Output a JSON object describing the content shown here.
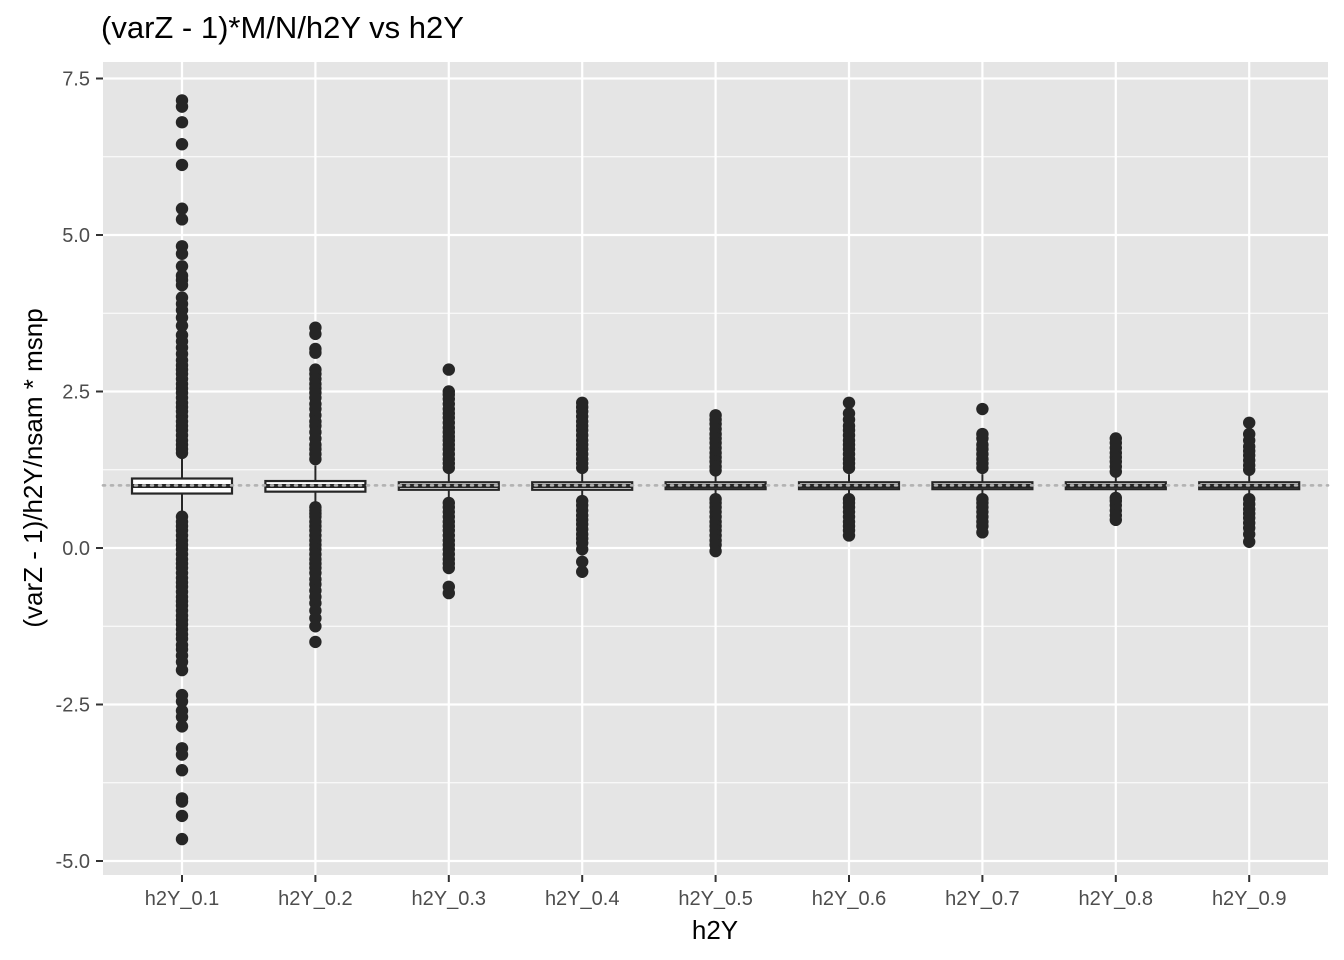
{
  "chart_data": {
    "type": "box",
    "title": "(varZ - 1)*M/N/h2Y vs h2Y",
    "xlabel": "h2Y",
    "ylabel": "(varZ - 1)/h2Y/nsam * msnp",
    "categories": [
      "h2Y_0.1",
      "h2Y_0.2",
      "h2Y_0.3",
      "h2Y_0.4",
      "h2Y_0.5",
      "h2Y_0.6",
      "h2Y_0.7",
      "h2Y_0.8",
      "h2Y_0.9"
    ],
    "ylim": [
      -5.2,
      7.75
    ],
    "yticks": [
      -5.0,
      -2.5,
      0.0,
      2.5,
      5.0,
      7.5
    ],
    "ytick_labels": [
      "-5.0",
      "-2.5",
      "0.0",
      "2.5",
      "5.0",
      "7.5"
    ],
    "reference_line": 1.0,
    "grid": true,
    "colors": {
      "panel": "#e5e5e5",
      "grid": "#ffffff",
      "points": "#262626",
      "box_fill": "#ffffff",
      "box_stroke": "#262626",
      "reference": "#b3b3b3"
    },
    "boxes": [
      {
        "category": "h2Y_0.1",
        "q1": 0.87,
        "median": 0.99,
        "q3": 1.11,
        "whisker_low": 0.55,
        "whisker_high": 1.45,
        "outliers": [
          7.15,
          7.05,
          6.8,
          6.45,
          6.12,
          5.42,
          5.25,
          4.82,
          4.7,
          4.5,
          4.35,
          4.28,
          4.2,
          4.0,
          3.9,
          3.8,
          3.68,
          3.55,
          3.4,
          3.3,
          3.2,
          3.1,
          3.0,
          2.92,
          2.85,
          2.78,
          2.7,
          2.62,
          2.55,
          2.48,
          2.4,
          2.32,
          2.25,
          2.18,
          2.1,
          2.02,
          1.95,
          1.88,
          1.8,
          1.72,
          1.65,
          1.58,
          1.52,
          0.5,
          0.42,
          0.35,
          0.28,
          0.2,
          0.12,
          0.05,
          -0.02,
          -0.1,
          -0.18,
          -0.25,
          -0.32,
          -0.4,
          -0.48,
          -0.55,
          -0.62,
          -0.7,
          -0.78,
          -0.85,
          -0.92,
          -1.0,
          -1.08,
          -1.15,
          -1.22,
          -1.3,
          -1.38,
          -1.45,
          -1.55,
          -1.62,
          -1.72,
          -1.82,
          -1.95,
          -2.35,
          -2.45,
          -2.6,
          -2.7,
          -2.85,
          -3.2,
          -3.3,
          -3.55,
          -4.0,
          -4.05,
          -4.28,
          -4.65
        ]
      },
      {
        "category": "h2Y_0.2",
        "q1": 0.9,
        "median": 0.99,
        "q3": 1.07,
        "whisker_low": 0.68,
        "whisker_high": 1.32,
        "outliers": [
          3.52,
          3.42,
          3.18,
          3.12,
          2.85,
          2.78,
          2.7,
          2.62,
          2.55,
          2.48,
          2.4,
          2.3,
          2.22,
          2.12,
          2.02,
          1.95,
          1.85,
          1.75,
          1.65,
          1.58,
          1.5,
          1.42,
          0.65,
          0.6,
          0.55,
          0.5,
          0.42,
          0.35,
          0.28,
          0.2,
          0.12,
          0.05,
          -0.02,
          -0.1,
          -0.18,
          -0.25,
          -0.32,
          -0.4,
          -0.5,
          -0.58,
          -0.68,
          -0.78,
          -0.88,
          -1.0,
          -1.12,
          -1.25,
          -1.5
        ]
      },
      {
        "category": "h2Y_0.3",
        "q1": 0.93,
        "median": 0.99,
        "q3": 1.05,
        "whisker_low": 0.78,
        "whisker_high": 1.22,
        "outliers": [
          2.85,
          2.5,
          2.45,
          2.38,
          2.3,
          2.22,
          2.15,
          2.08,
          2.0,
          1.92,
          1.85,
          1.78,
          1.72,
          1.65,
          1.58,
          1.5,
          1.42,
          1.35,
          1.28,
          0.72,
          0.65,
          0.58,
          0.5,
          0.42,
          0.35,
          0.28,
          0.2,
          0.12,
          0.05,
          -0.02,
          -0.1,
          -0.18,
          -0.25,
          -0.32,
          -0.62,
          -0.72
        ]
      },
      {
        "category": "h2Y_0.4",
        "q1": 0.93,
        "median": 0.99,
        "q3": 1.05,
        "whisker_low": 0.8,
        "whisker_high": 1.2,
        "outliers": [
          2.32,
          2.25,
          2.18,
          2.1,
          2.02,
          1.95,
          1.88,
          1.8,
          1.72,
          1.65,
          1.58,
          1.5,
          1.42,
          1.35,
          1.28,
          0.75,
          0.68,
          0.6,
          0.52,
          0.45,
          0.38,
          0.3,
          0.22,
          0.15,
          0.08,
          -0.02,
          -0.22,
          -0.38
        ]
      },
      {
        "category": "h2Y_0.5",
        "q1": 0.94,
        "median": 0.99,
        "q3": 1.05,
        "whisker_low": 0.82,
        "whisker_high": 1.18,
        "outliers": [
          2.12,
          2.05,
          1.98,
          1.9,
          1.82,
          1.75,
          1.68,
          1.6,
          1.52,
          1.45,
          1.38,
          1.3,
          1.24,
          0.78,
          0.72,
          0.65,
          0.58,
          0.5,
          0.42,
          0.35,
          0.28,
          0.2,
          0.12,
          0.05,
          -0.05
        ]
      },
      {
        "category": "h2Y_0.6",
        "q1": 0.94,
        "median": 0.99,
        "q3": 1.05,
        "whisker_low": 0.82,
        "whisker_high": 1.18,
        "outliers": [
          2.32,
          2.15,
          2.05,
          1.95,
          1.88,
          1.8,
          1.72,
          1.65,
          1.58,
          1.5,
          1.42,
          1.35,
          1.28,
          0.78,
          0.72,
          0.65,
          0.58,
          0.5,
          0.42,
          0.35,
          0.28,
          0.2
        ]
      },
      {
        "category": "h2Y_0.7",
        "q1": 0.94,
        "median": 0.99,
        "q3": 1.05,
        "whisker_low": 0.82,
        "whisker_high": 1.18,
        "outliers": [
          2.22,
          1.82,
          1.75,
          1.65,
          1.58,
          1.5,
          1.42,
          1.35,
          1.28,
          0.78,
          0.72,
          0.65,
          0.58,
          0.5,
          0.42,
          0.35,
          0.25
        ]
      },
      {
        "category": "h2Y_0.8",
        "q1": 0.94,
        "median": 0.99,
        "q3": 1.05,
        "whisker_low": 0.85,
        "whisker_high": 1.15,
        "outliers": [
          1.75,
          1.68,
          1.6,
          1.52,
          1.45,
          1.38,
          1.3,
          1.22,
          0.8,
          0.75,
          0.68,
          0.6,
          0.52,
          0.45
        ]
      },
      {
        "category": "h2Y_0.9",
        "q1": 0.94,
        "median": 0.99,
        "q3": 1.05,
        "whisker_low": 0.82,
        "whisker_high": 1.18,
        "outliers": [
          2.0,
          1.82,
          1.72,
          1.62,
          1.55,
          1.48,
          1.4,
          1.32,
          1.25,
          0.78,
          0.7,
          0.62,
          0.55,
          0.48,
          0.4,
          0.32,
          0.22,
          0.1
        ]
      }
    ]
  }
}
